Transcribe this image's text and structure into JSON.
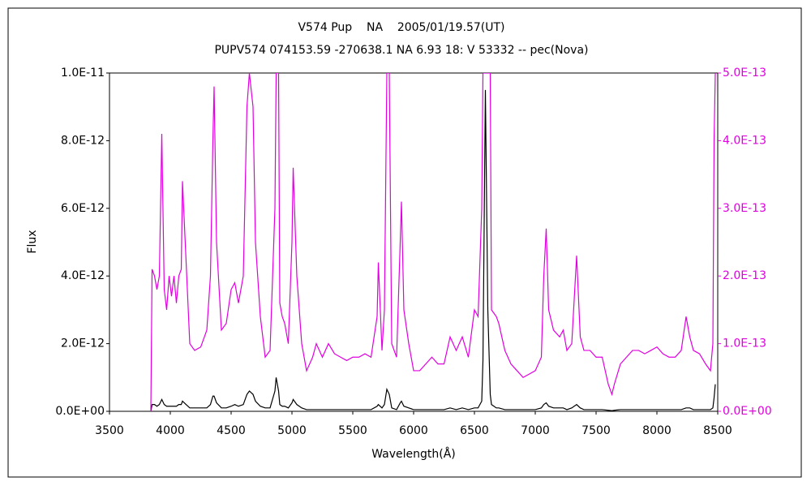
{
  "chart_data": {
    "type": "line",
    "title": "V574 Pup    NA    2005/01/19.57(UT)",
    "subtitle": "PUPV574 074153.59 -270638.1 NA 6.93 18: V 53332 -- pec(Nova)",
    "xlabel": "Wavelength(Å)",
    "ylabel": "Flux",
    "xlim": [
      3500,
      8500
    ],
    "xticks": [
      3500,
      4000,
      4500,
      5000,
      5500,
      6000,
      6500,
      7000,
      7500,
      8000,
      8500
    ],
    "ylim": [
      0,
      1e-11
    ],
    "yticks": [
      {
        "value": 0,
        "label": "0.0E+00"
      },
      {
        "value": 2e-12,
        "label": "2.0E-12"
      },
      {
        "value": 4e-12,
        "label": "4.0E-12"
      },
      {
        "value": 6e-12,
        "label": "6.0E-12"
      },
      {
        "value": 8e-12,
        "label": "8.0E-12"
      },
      {
        "value": 1e-11,
        "label": "1.0E-11"
      }
    ],
    "y2lim": [
      0,
      5e-13
    ],
    "y2ticks": [
      {
        "value": 0,
        "label": "0.0E+00"
      },
      {
        "value": 1e-13,
        "label": "1.0E-13"
      },
      {
        "value": 2e-13,
        "label": "2.0E-13"
      },
      {
        "value": 3e-13,
        "label": "3.0E-13"
      },
      {
        "value": 4e-13,
        "label": "4.0E-13"
      },
      {
        "value": 5e-13,
        "label": "5.0E-13"
      }
    ],
    "y2color": "#e000e0",
    "x": [
      3840,
      3850,
      3870,
      3890,
      3910,
      3930,
      3950,
      3970,
      3990,
      4010,
      4030,
      4050,
      4070,
      4090,
      4100,
      4130,
      4160,
      4200,
      4250,
      4300,
      4330,
      4350,
      4360,
      4380,
      4420,
      4460,
      4500,
      4530,
      4560,
      4600,
      4630,
      4650,
      4680,
      4700,
      4740,
      4780,
      4820,
      4860,
      4870,
      4890,
      4900,
      4920,
      4940,
      4970,
      5000,
      5010,
      5040,
      5080,
      5120,
      5170,
      5200,
      5250,
      5300,
      5350,
      5400,
      5450,
      5500,
      5550,
      5600,
      5650,
      5700,
      5710,
      5740,
      5760,
      5780,
      5800,
      5820,
      5860,
      5890,
      5900,
      5920,
      5960,
      6000,
      6050,
      6100,
      6150,
      6200,
      6250,
      6300,
      6350,
      6400,
      6450,
      6500,
      6530,
      6560,
      6570,
      6590,
      6610,
      6630,
      6640,
      6680,
      6700,
      6750,
      6800,
      6850,
      6900,
      6950,
      7000,
      7050,
      7070,
      7090,
      7110,
      7150,
      7200,
      7230,
      7260,
      7300,
      7340,
      7370,
      7400,
      7450,
      7500,
      7550,
      7600,
      7630,
      7650,
      7700,
      7750,
      7800,
      7850,
      7900,
      7950,
      8000,
      8050,
      8100,
      8150,
      8200,
      8240,
      8270,
      8300,
      8350,
      8400,
      8440,
      8460,
      8470,
      8480
    ],
    "series": [
      {
        "color": "#000000",
        "axis": "y",
        "values": [
          0,
          2e-13,
          2e-13,
          1.5e-13,
          2e-13,
          3.5e-13,
          2e-13,
          1.5e-13,
          1.5e-13,
          1.5e-13,
          1.5e-13,
          1.5e-13,
          2e-13,
          2e-13,
          3e-13,
          2e-13,
          1e-13,
          1e-13,
          1e-13,
          1e-13,
          2e-13,
          4.5e-13,
          4.5e-13,
          2.5e-13,
          1e-13,
          1e-13,
          1.5e-13,
          2e-13,
          1.5e-13,
          2e-13,
          5e-13,
          6e-13,
          5e-13,
          3e-13,
          1.5e-13,
          1e-13,
          1e-13,
          6e-13,
          1e-12,
          6e-13,
          2e-13,
          1.5e-13,
          1.5e-13,
          1e-13,
          2.5e-13,
          3.5e-13,
          2e-13,
          1e-13,
          5e-14,
          5e-14,
          5e-14,
          5e-14,
          5e-14,
          5e-14,
          5e-14,
          5e-14,
          5e-14,
          5e-14,
          5e-14,
          5e-14,
          1.5e-13,
          2e-13,
          1e-13,
          2e-13,
          6.5e-13,
          5e-13,
          1e-13,
          5e-14,
          2.5e-13,
          3e-13,
          1.5e-13,
          1e-13,
          5e-14,
          5e-14,
          5e-14,
          5e-14,
          5e-14,
          5e-14,
          1e-13,
          5e-14,
          1e-13,
          5e-14,
          1e-13,
          1e-13,
          3e-13,
          1.5e-12,
          9.5e-12,
          3e-12,
          5e-13,
          2e-13,
          1e-13,
          1e-13,
          5e-14,
          5e-14,
          5e-14,
          5e-14,
          5e-14,
          5e-14,
          1e-13,
          2e-13,
          2.5e-13,
          1.5e-13,
          1e-13,
          1e-13,
          1e-13,
          5e-14,
          1e-13,
          2e-13,
          1e-13,
          5e-14,
          5e-14,
          5e-14,
          5e-14,
          3e-14,
          2e-14,
          3e-14,
          5e-14,
          5e-14,
          5e-14,
          5e-14,
          5e-14,
          5e-14,
          5e-14,
          5e-14,
          5e-14,
          5e-14,
          5e-14,
          1e-13,
          1e-13,
          5e-14,
          5e-14,
          5e-14,
          5e-14,
          1e-13,
          4e-13,
          8e-13
        ]
      },
      {
        "color": "#e000e0",
        "axis": "y2",
        "values": [
          0,
          2.1e-13,
          2e-13,
          1.8e-13,
          2e-13,
          4.1e-13,
          1.8e-13,
          1.5e-13,
          2e-13,
          1.7e-13,
          2e-13,
          1.6e-13,
          2e-13,
          2.1e-13,
          3.4e-13,
          2.2e-13,
          1e-13,
          9e-14,
          9.5e-14,
          1.2e-13,
          2e-13,
          4e-13,
          4.8e-13,
          2.5e-13,
          1.2e-13,
          1.3e-13,
          1.8e-13,
          1.9e-13,
          1.6e-13,
          2e-13,
          4.5e-13,
          5e-13,
          4.5e-13,
          2.5e-13,
          1.4e-13,
          8e-14,
          9e-14,
          3e-13,
          5e-13,
          5e-13,
          1.6e-13,
          1.4e-13,
          1.3e-13,
          1e-13,
          2.5e-13,
          3.6e-13,
          2e-13,
          1e-13,
          6e-14,
          8e-14,
          1e-13,
          8e-14,
          1e-13,
          8.5e-14,
          8e-14,
          7.5e-14,
          8e-14,
          8e-14,
          8.5e-14,
          8e-14,
          1.4e-13,
          2.2e-13,
          9e-14,
          1.5e-13,
          5e-13,
          5e-13,
          1e-13,
          8e-14,
          2.5e-13,
          3.1e-13,
          1.5e-13,
          1e-13,
          6e-14,
          6e-14,
          7e-14,
          8e-14,
          7e-14,
          7e-14,
          1.1e-13,
          9e-14,
          1.1e-13,
          8e-14,
          1.5e-13,
          1.4e-13,
          3e-13,
          5e-13,
          5e-13,
          5e-13,
          5e-13,
          1.5e-13,
          1.4e-13,
          1.3e-13,
          9e-14,
          7e-14,
          6e-14,
          5e-14,
          5.5e-14,
          6e-14,
          8e-14,
          2e-13,
          2.7e-13,
          1.5e-13,
          1.2e-13,
          1.1e-13,
          1.2e-13,
          9e-14,
          1e-13,
          2.3e-13,
          1.1e-13,
          9e-14,
          9e-14,
          8e-14,
          8e-14,
          4e-14,
          2.5e-14,
          4e-14,
          7e-14,
          8e-14,
          9e-14,
          9e-14,
          8.5e-14,
          9e-14,
          9.5e-14,
          8.5e-14,
          8e-14,
          8e-14,
          9e-14,
          1.4e-13,
          1.1e-13,
          9e-14,
          8.5e-14,
          7e-14,
          6e-14,
          1e-13,
          4e-13,
          5e-13
        ]
      }
    ]
  }
}
